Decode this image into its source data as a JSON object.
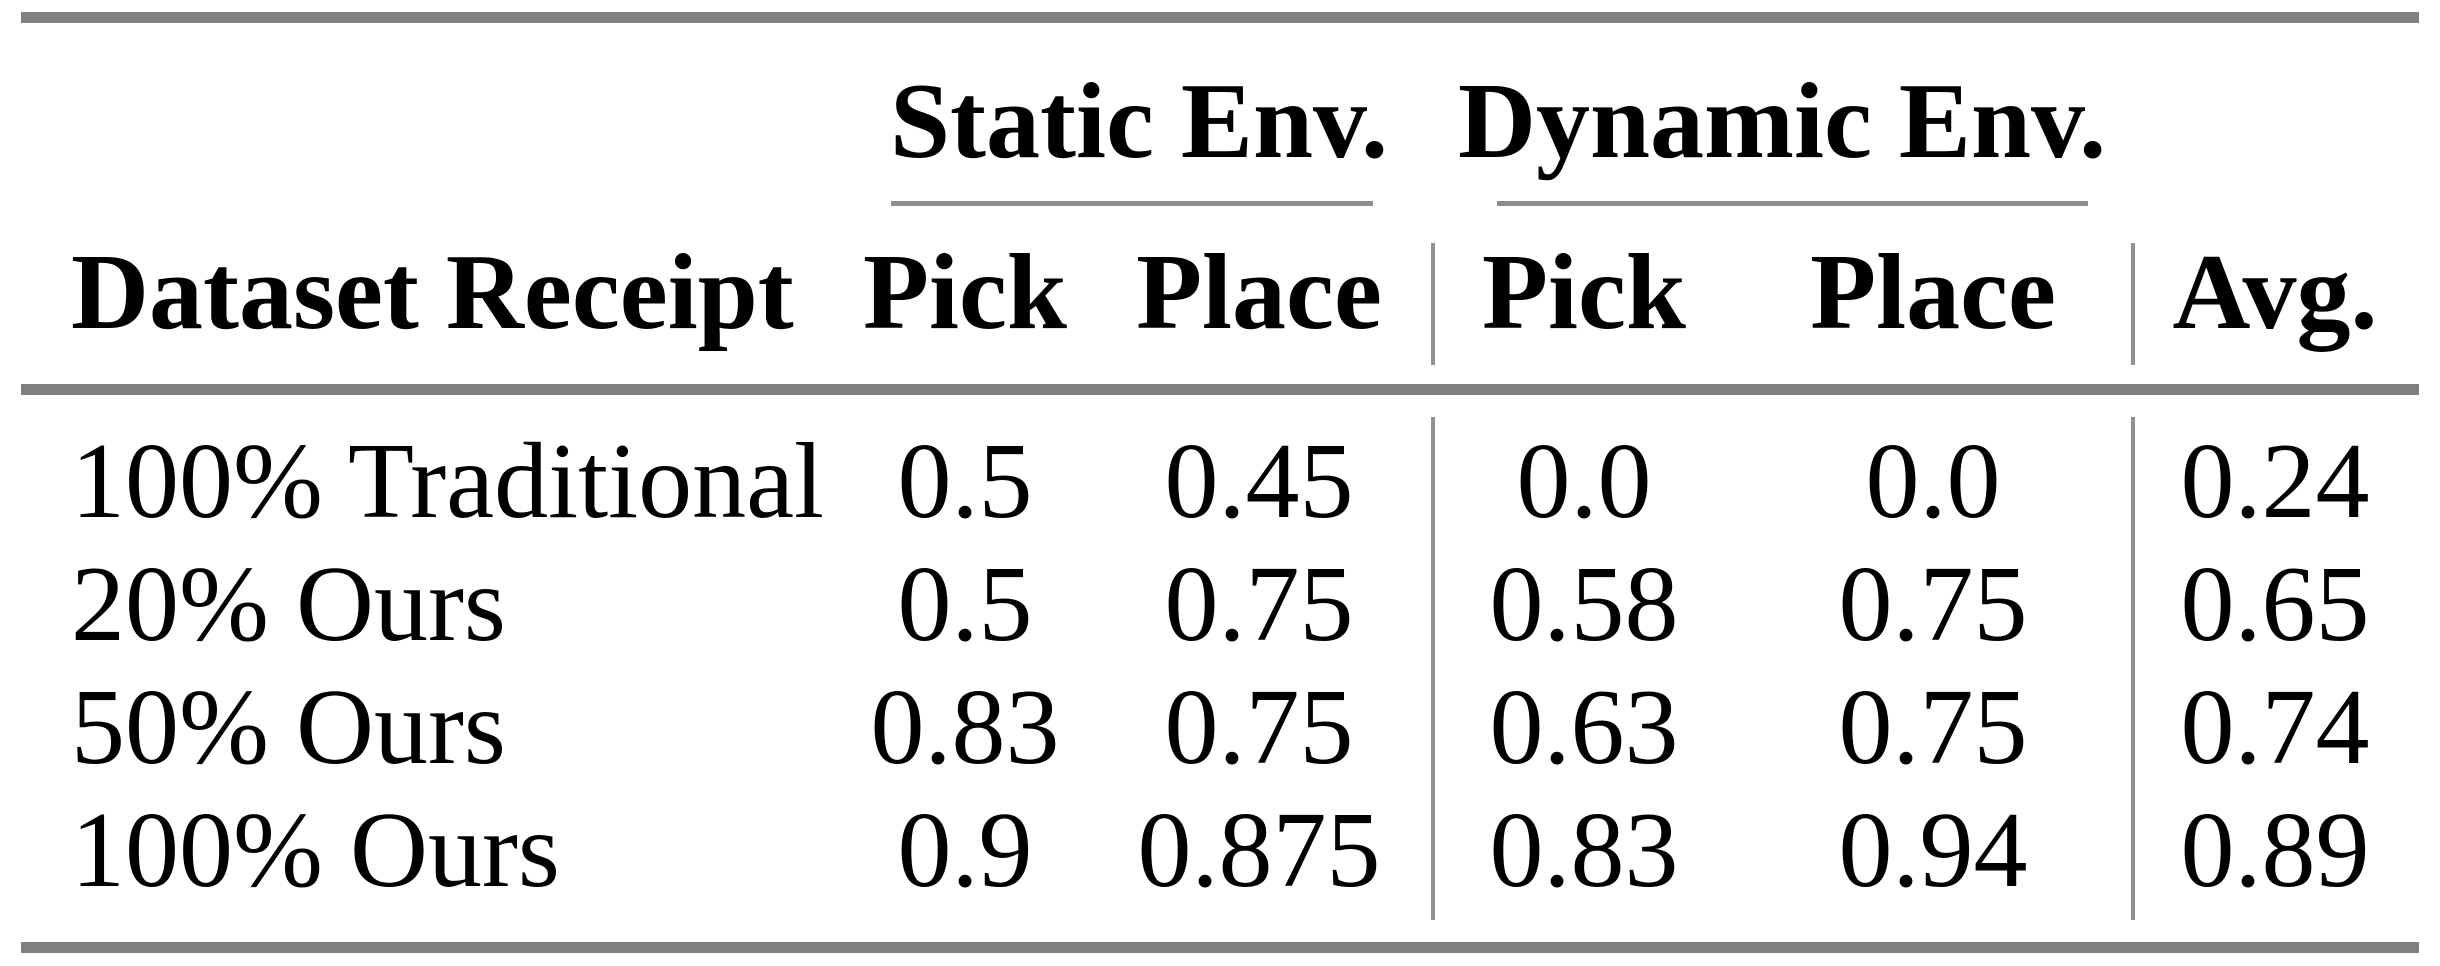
{
  "table": {
    "row_label_header": "Dataset Receipt",
    "groups": [
      {
        "label": "Static Env."
      },
      {
        "label": "Dynamic Env."
      }
    ],
    "sub_headers": [
      "Pick",
      "Place",
      "Pick",
      "Place"
    ],
    "avg_header": "Avg.",
    "rows": [
      {
        "label": "100% Traditional",
        "values": [
          "0.5",
          "0.45",
          "0.0",
          "0.0",
          "0.24"
        ]
      },
      {
        "label": "20% Ours",
        "values": [
          "0.5",
          "0.75",
          "0.58",
          "0.75",
          "0.65"
        ]
      },
      {
        "label": "50% Ours",
        "values": [
          "0.83",
          "0.75",
          "0.63",
          "0.75",
          "0.74"
        ]
      },
      {
        "label": "100% Ours",
        "values": [
          "0.9",
          "0.875",
          "0.83",
          "0.94",
          "0.89"
        ]
      }
    ],
    "colors": {
      "rule_thick": "#808080",
      "rule_thin": "#8d8d8d",
      "vertical_rule": "#919191",
      "text": "#000000",
      "background": "#ffffff"
    }
  }
}
